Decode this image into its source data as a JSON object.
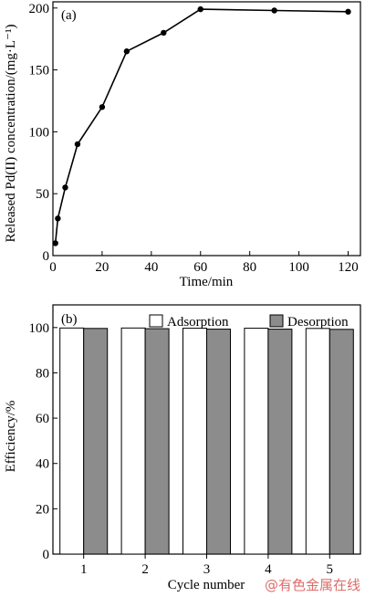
{
  "chart_data": [
    {
      "type": "line",
      "panel_label": "(a)",
      "xlabel": "Time/min",
      "ylabel": "Released Pd(II) concentration/(mg·L⁻¹)",
      "xlim": [
        0,
        125
      ],
      "ylim": [
        0,
        205
      ],
      "xticks": [
        0,
        20,
        40,
        60,
        80,
        100,
        120
      ],
      "yticks": [
        0,
        50,
        100,
        150,
        200
      ],
      "grid": false,
      "series": [
        {
          "marker": "circle",
          "color": "#000000",
          "x": [
            1,
            2,
            5,
            10,
            20,
            30,
            45,
            60,
            90,
            120
          ],
          "y": [
            10,
            30,
            55,
            90,
            120,
            165,
            180,
            199,
            198,
            197
          ]
        }
      ]
    },
    {
      "type": "bar",
      "panel_label": "(b)",
      "xlabel": "Cycle number",
      "ylabel": "Efficiency/%",
      "ylim": [
        0,
        110
      ],
      "yticks": [
        0,
        20,
        40,
        60,
        80,
        100
      ],
      "grid": false,
      "legend_position": "top-right",
      "categories": [
        "1",
        "2",
        "3",
        "4",
        "5"
      ],
      "series": [
        {
          "name": "Adsorption",
          "color": "#ffffff",
          "values": [
            99.8,
            99.8,
            99.7,
            99.7,
            99.6
          ]
        },
        {
          "name": "Desorption",
          "color": "#8c8c8c",
          "values": [
            99.6,
            99.5,
            99.3,
            99.3,
            99.2
          ]
        }
      ]
    }
  ],
  "watermark": "@有色金属在线"
}
